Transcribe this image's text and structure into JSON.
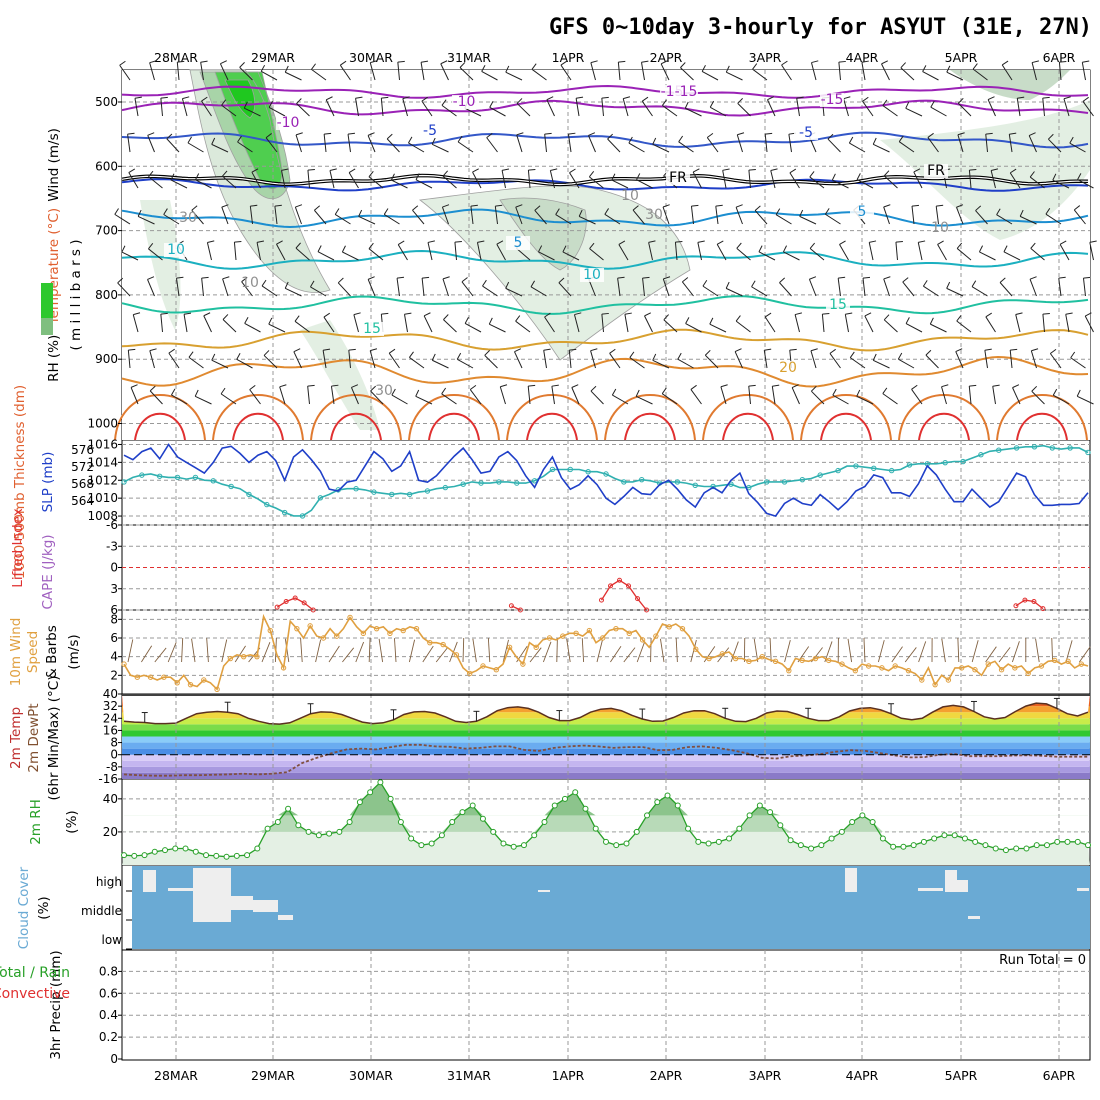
{
  "title": "GFS 0~10day 3-hourly for ASYUT (31E, 27N)",
  "colors": {
    "rh": "#2ec82e",
    "temperature": "#e06030",
    "wind": "#000000",
    "slp": "#1f3fc8",
    "thickness": "#30b0b0",
    "lifted": "#e03030",
    "cape": "#a060c0",
    "wind10": "#e0a040",
    "rh2": "#28a028",
    "cloud": "#6aaad4",
    "precip_total": "#28a028",
    "precip_conv": "#e03030"
  },
  "chart_data": [
    {
      "panel": "upper_air",
      "type": "contour",
      "x_dates": [
        "28MAR",
        "29MAR",
        "30MAR",
        "31MAR",
        "1APR",
        "2APR",
        "3APR",
        "4APR",
        "5APR",
        "6APR"
      ],
      "ylabel_parts": [
        "RH (%)",
        "Temperature (°C)",
        "Wind (m/s)"
      ],
      "ylabel2": "( m i l l i b a r s )",
      "y_ticks": [
        "500",
        "600",
        "700",
        "800",
        "900",
        "1000"
      ],
      "contour_labels": [
        {
          "text": "-15",
          "kind": "temperature"
        },
        {
          "text": "-10",
          "kind": "temperature"
        },
        {
          "text": "-15",
          "kind": "temperature"
        },
        {
          "text": "-10",
          "kind": "temperature"
        },
        {
          "text": "-15",
          "kind": "temperature"
        },
        {
          "text": "-5",
          "kind": "temperature"
        },
        {
          "text": "-5",
          "kind": "temperature"
        },
        {
          "text": "FR",
          "kind": "freezing"
        },
        {
          "text": "FR",
          "kind": "freezing"
        },
        {
          "text": "5",
          "kind": "temperature"
        },
        {
          "text": "5",
          "kind": "temperature"
        },
        {
          "text": "10",
          "kind": "temperature"
        },
        {
          "text": "10",
          "kind": "temperature"
        },
        {
          "text": "15",
          "kind": "temperature"
        },
        {
          "text": "15",
          "kind": "temperature"
        },
        {
          "text": "20",
          "kind": "temperature"
        },
        {
          "text": "30",
          "kind": "rh"
        },
        {
          "text": "30",
          "kind": "rh"
        },
        {
          "text": "10",
          "kind": "rh"
        },
        {
          "text": "10",
          "kind": "rh"
        },
        {
          "text": "10",
          "kind": "rh"
        },
        {
          "text": "30",
          "kind": "rh"
        }
      ]
    },
    {
      "panel": "slp_thickness",
      "type": "line",
      "ylabel_left": "1000-500mb Thickness (dm)",
      "ylabel_right": "SLP (mb)",
      "left_ticks": [
        "576",
        "572",
        "568",
        "564"
      ],
      "right_ticks": [
        "1016",
        "1014",
        "1012",
        "1010",
        "1008"
      ],
      "ylim_slp": [
        1007,
        1016.5
      ],
      "series": [
        {
          "name": "SLP (mb)",
          "values": [
            1014.8,
            1014.3,
            1015.2,
            1015.6,
            1014.4,
            1016.0,
            1014.6,
            1014.0,
            1013.4,
            1012.8,
            1014.0,
            1015.6,
            1015.8,
            1015.0,
            1014.0,
            1014.8,
            1015.2,
            1014.2,
            1012.0,
            1014.6,
            1015.4,
            1014.3,
            1013.0,
            1011.0,
            1010.8,
            1011.8,
            1012.0,
            1013.6,
            1015.2,
            1014.4,
            1013.0,
            1013.6,
            1015.2,
            1012.0,
            1011.8,
            1012.5,
            1013.6,
            1014.7,
            1015.6,
            1014.3,
            1012.8,
            1013.0,
            1014.6,
            1015.2,
            1014.2,
            1012.5,
            1011.2,
            1013.2,
            1014.6,
            1012.3,
            1011.0,
            1011.5,
            1012.5,
            1011.5,
            1010.0,
            1009.3,
            1010.2,
            1011.2,
            1010.5,
            1010.4,
            1011.5,
            1012.0,
            1011.0,
            1009.8,
            1009.0,
            1010.6,
            1011.2,
            1010.6,
            1012.0,
            1012.8,
            1010.5,
            1009.5,
            1008.3,
            1008.0,
            1009.4,
            1010.0,
            1009.4,
            1009.2,
            1010.4,
            1009.6,
            1008.7,
            1009.6,
            1010.8,
            1011.3,
            1012.6,
            1012.3,
            1010.6,
            1010.6,
            1010.2,
            1011.6,
            1013.6,
            1012.6,
            1011.0,
            1009.6,
            1009.6,
            1011.0,
            1010.0,
            1009.0,
            1009.6,
            1011.2,
            1012.8,
            1012.4,
            1010.4,
            1009.2,
            1009.2,
            1009.3,
            1009.3,
            1009.4,
            1010.6
          ]
        },
        {
          "name": "1000-500mb Thickness (dm)",
          "values": [
            569.6,
            570.4,
            570.8,
            571.0,
            570.6,
            570.4,
            570.4,
            570.1,
            570.4,
            569.9,
            569.8,
            569.2,
            568.8,
            568.4,
            567.4,
            566.6,
            565.6,
            565.0,
            564.2,
            563.6,
            563.6,
            564.6,
            566.8,
            567.4,
            568.2,
            568.4,
            568.4,
            568.2,
            567.8,
            567.6,
            567.4,
            567.6,
            567.4,
            567.8,
            568.0,
            568.4,
            568.6,
            568.8,
            569.2,
            569.6,
            569.4,
            569.4,
            569.6,
            569.6,
            569.4,
            569.4,
            569.8,
            570.6,
            571.8,
            571.8,
            571.8,
            571.8,
            571.4,
            571.4,
            571.0,
            570.2,
            569.6,
            569.6,
            570.0,
            569.8,
            569.4,
            569.6,
            569.6,
            569.4,
            569.0,
            568.8,
            568.8,
            569.0,
            569.2,
            568.6,
            568.6,
            569.2,
            569.6,
            569.6,
            569.6,
            569.8,
            570.0,
            570.2,
            570.8,
            571.2,
            571.6,
            572.4,
            572.4,
            572.2,
            572.0,
            571.8,
            571.6,
            571.8,
            572.6,
            572.8,
            572.8,
            572.8,
            573.0,
            573.2,
            573.2,
            573.8,
            574.4,
            575.0,
            575.2,
            575.4,
            575.6,
            575.8,
            575.8,
            576.0,
            575.6,
            575.4,
            575.6,
            575.6,
            574.8
          ]
        }
      ]
    },
    {
      "panel": "lifted_cape",
      "type": "line",
      "ylabel_parts": [
        "Lifted Index",
        "CAPE (J/kg)"
      ],
      "y_ticks": [
        "-6",
        "-3",
        "0",
        "3",
        "6"
      ],
      "ylim": [
        -6,
        6
      ],
      "series": [
        {
          "name": "Lifted Index",
          "segments": [
            [
              17,
              5.6
            ],
            [
              18,
              4.8
            ],
            [
              19,
              4.3
            ],
            [
              20,
              5.0
            ],
            [
              21,
              6.0
            ]
          ]
        },
        {
          "name": "Lifted Index",
          "segments": [
            [
              43,
              5.4
            ],
            [
              44,
              6.0
            ]
          ]
        },
        {
          "name": "Lifted Index",
          "segments": [
            [
              53,
              4.6
            ],
            [
              54,
              2.6
            ],
            [
              55,
              1.8
            ],
            [
              56,
              2.6
            ],
            [
              57,
              4.4
            ],
            [
              58,
              6.0
            ]
          ]
        },
        {
          "name": "Lifted Index",
          "segments": [
            [
              99,
              5.4
            ],
            [
              100,
              4.6
            ],
            [
              101,
              4.8
            ],
            [
              102,
              5.8
            ]
          ]
        }
      ]
    },
    {
      "panel": "wind10",
      "type": "line",
      "ylabel_parts": [
        "10m Wind",
        "Speed",
        "& Barbs",
        "(m/s)"
      ],
      "y_ticks": [
        "8",
        "6",
        "4",
        "2"
      ],
      "ylim": [
        0,
        9
      ],
      "series": [
        {
          "name": "10m Wind Speed (m/s)",
          "values": [
            3.2,
            2.0,
            1.8,
            2.0,
            1.8,
            1.5,
            1.8,
            1.8,
            1.2,
            2.0,
            1.0,
            0.8,
            1.5,
            1.2,
            0.5,
            3.0,
            3.8,
            4.2,
            4.0,
            4.2,
            4.0,
            8.3,
            6.8,
            4.2,
            2.8,
            7.8,
            7.0,
            6.0,
            7.3,
            6.2,
            6.0,
            7.0,
            6.2,
            7.0,
            8.2,
            7.2,
            6.5,
            7.3,
            7.0,
            7.2,
            6.5,
            7.0,
            6.8,
            7.2,
            7.0,
            6.0,
            5.5,
            5.5,
            5.3,
            4.8,
            4.2,
            2.8,
            2.2,
            2.5,
            3.0,
            2.8,
            2.6,
            3.2,
            5.0,
            4.0,
            3.2,
            5.5,
            5.0,
            5.8,
            6.0,
            5.8,
            6.2,
            6.5,
            6.5,
            6.2,
            6.8,
            5.5,
            6.0,
            6.8,
            7.0,
            7.0,
            6.5,
            6.8,
            5.8,
            5.0,
            6.2,
            7.5,
            7.2,
            7.5,
            7.0,
            6.2,
            4.8,
            4.0,
            3.8,
            4.0,
            4.3,
            4.5,
            3.8,
            3.8,
            3.5,
            3.6,
            4.0,
            3.7,
            3.5,
            3.2,
            2.5,
            3.8,
            3.6,
            3.5,
            3.8,
            4.0,
            3.6,
            3.5,
            3.2,
            2.8,
            2.5,
            3.2,
            3.0,
            3.0,
            2.8,
            2.5,
            3.0,
            2.8,
            2.5,
            2.2,
            1.5,
            2.8,
            1.0,
            2.0,
            1.5,
            2.8,
            2.8,
            3.0,
            2.6,
            2.0,
            3.2,
            3.5,
            2.6,
            3.2,
            2.8,
            3.0,
            2.2,
            2.8,
            3.0,
            3.5,
            3.6,
            3.2,
            3.5,
            2.8,
            3.2,
            3.0
          ]
        }
      ]
    },
    {
      "panel": "temp2m",
      "type": "area",
      "ylabel_parts": [
        "2m Temp",
        "2m DewPt",
        "(6hr Min/Max) (°C)"
      ],
      "y_ticks": [
        "40",
        "32",
        "24",
        "16",
        "8",
        "0",
        "-8",
        "-16"
      ],
      "ylim": [
        -16,
        40
      ],
      "series": [
        {
          "name": "2m Temp",
          "values": [
            22.0,
            21.5,
            21.2,
            20.5,
            20.5,
            20.8,
            24.0,
            27.0,
            28.0,
            28.5,
            28.0,
            27.0,
            24.0,
            22.0,
            20.5,
            20.2,
            21.0,
            24.0,
            27.0,
            28.2,
            28.0,
            26.5,
            24.0,
            21.5,
            20.5,
            21.0,
            23.0,
            26.5,
            28.2,
            28.5,
            27.5,
            25.0,
            22.0,
            21.2,
            22.0,
            25.0,
            29.0,
            31.0,
            31.5,
            30.5,
            28.0,
            24.5,
            22.5,
            22.5,
            24.5,
            28.0,
            30.0,
            30.5,
            29.0,
            26.0,
            23.5,
            22.0,
            22.2,
            24.5,
            27.5,
            29.0,
            29.0,
            27.0,
            24.0,
            22.0,
            21.8,
            24.0,
            27.5,
            28.8,
            28.5,
            26.5,
            24.0,
            22.5,
            22.5,
            25.0,
            28.8,
            30.5,
            31.0,
            29.5,
            27.0,
            24.0,
            23.0,
            24.0,
            28.0,
            31.5,
            32.5,
            31.5,
            28.5,
            25.0,
            23.5,
            24.5,
            28.5,
            32.0,
            34.0,
            33.5,
            30.5,
            27.0,
            25.5,
            28.0
          ]
        },
        {
          "name": "2m DewPt",
          "values": [
            -13.0,
            -13.5,
            -13.8,
            -13.8,
            -13.5,
            -13.5,
            -13.2,
            -13.0,
            -12.5,
            -13.0,
            -12.5,
            -11.5,
            -5.5,
            -2.0,
            1.0,
            3.5,
            4.0,
            3.5,
            5.0,
            6.5,
            6.5,
            5.5,
            5.2,
            4.0,
            4.5,
            5.5,
            5.5,
            3.2,
            2.5,
            4.5,
            5.5,
            6.0,
            5.5,
            4.5,
            5.0,
            5.0,
            3.0,
            3.2,
            5.0,
            5.5,
            4.5,
            3.0,
            1.0,
            -2.0,
            -2.5,
            -1.0,
            -0.5,
            0.5,
            2.0,
            3.0,
            2.5,
            1.0,
            -0.5,
            -1.8,
            -1.6,
            0.0,
            0.5,
            -1.0,
            -1.0,
            -1.0,
            -0.5,
            -0.4,
            -0.8,
            -1.4,
            -1.3,
            -1.3
          ]
        }
      ]
    },
    {
      "panel": "rh2m",
      "type": "area",
      "ylabel_parts": [
        "2m RH",
        "(%)"
      ],
      "y_ticks": [
        "40",
        "20"
      ],
      "ylim": [
        0,
        52
      ],
      "series": [
        {
          "name": "2m RH (%)",
          "values": [
            6,
            5.5,
            6,
            8,
            9,
            10,
            10,
            8,
            6,
            5.5,
            5,
            5.5,
            6,
            10,
            22,
            26,
            34,
            24,
            20,
            18,
            19,
            20,
            26,
            38,
            44,
            50,
            40,
            26,
            16,
            12,
            13,
            18,
            26,
            32,
            36,
            28,
            20,
            13,
            11,
            12,
            18,
            26,
            36,
            40,
            44,
            34,
            22,
            14,
            12,
            13,
            20,
            30,
            38,
            42,
            36,
            22,
            14,
            13,
            14,
            16,
            22,
            30,
            36,
            32,
            24,
            15,
            12,
            10,
            12,
            16,
            20,
            26,
            30,
            26,
            16,
            11,
            11,
            12,
            14,
            16,
            18,
            18,
            16,
            14,
            12,
            10,
            9,
            10,
            10,
            12,
            12,
            14,
            14,
            14,
            12
          ]
        }
      ]
    },
    {
      "panel": "cloud",
      "type": "heatmap",
      "ylabel_parts": [
        "Cloud Cover",
        "(%)"
      ],
      "y_ticks": [
        "high",
        "middle",
        "low"
      ]
    },
    {
      "panel": "precip",
      "type": "bar",
      "ylabel_parts": [
        "3hr Precip (mm)",
        "Total / Rain",
        "Convective"
      ],
      "y_ticks": [
        "0.8",
        "0.6",
        "0.4",
        "0.2",
        "0"
      ],
      "ylim": [
        0,
        1.0
      ],
      "run_total": "Run Total = 0",
      "values": []
    }
  ]
}
